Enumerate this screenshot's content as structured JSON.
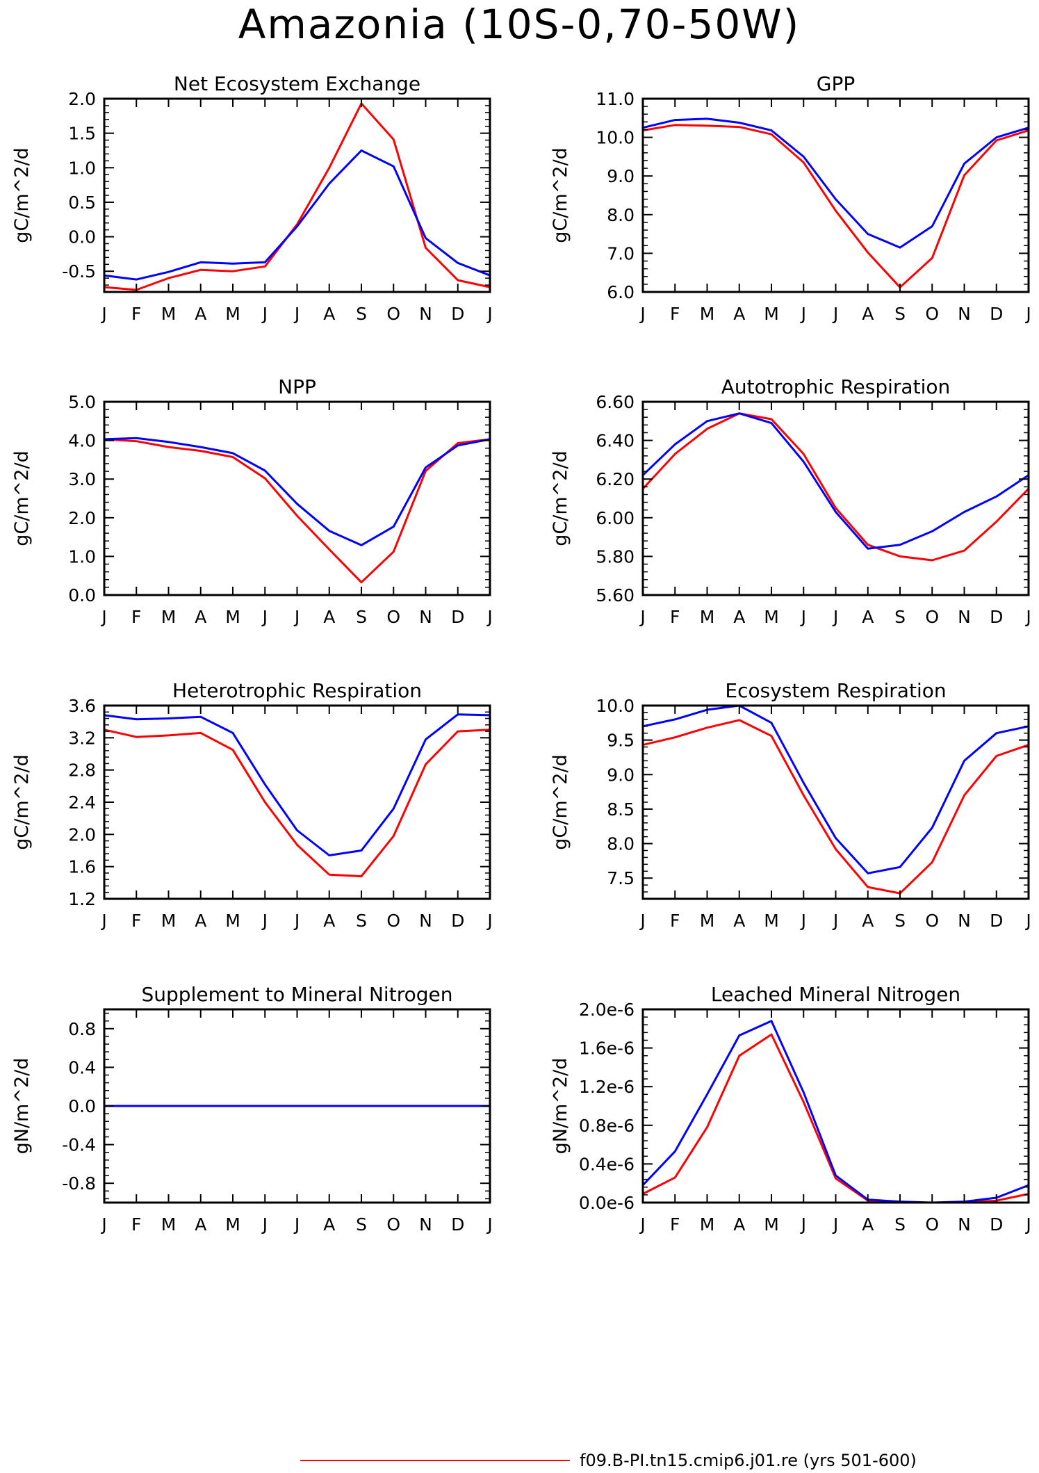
{
  "figure": {
    "title": "Amazonia (10S-0,70-50W)",
    "colors": {
      "series_red": "#ff0000",
      "series_blue": "#0000ff",
      "axis": "#000000"
    },
    "legend": [
      {
        "label": "f09.B-PI.tn15.cmip6.j01.re (yrs 501-600)",
        "color": "#ff0000"
      }
    ]
  },
  "chart_data": [
    {
      "type": "line",
      "title": "Net Ecosystem Exchange",
      "ylabel": "gC/m^2/d",
      "x": [
        "J",
        "F",
        "M",
        "A",
        "M",
        "J",
        "J",
        "A",
        "S",
        "O",
        "N",
        "D",
        "J"
      ],
      "ylim": [
        -0.8,
        2.0
      ],
      "yticks": [
        -0.5,
        0.0,
        0.5,
        1.0,
        1.5,
        2.0
      ],
      "ytick_labels": [
        "-0.5",
        "0.0",
        "0.5",
        "1.0",
        "1.5",
        "2.0"
      ],
      "series": [
        {
          "color": "#ff0000",
          "values": [
            -0.73,
            -0.77,
            -0.6,
            -0.48,
            -0.5,
            -0.43,
            0.18,
            1.0,
            1.93,
            1.41,
            -0.16,
            -0.63,
            -0.73
          ]
        },
        {
          "color": "#0000ff",
          "values": [
            -0.56,
            -0.62,
            -0.51,
            -0.37,
            -0.39,
            -0.37,
            0.15,
            0.77,
            1.25,
            1.02,
            -0.02,
            -0.38,
            -0.56
          ]
        }
      ]
    },
    {
      "type": "line",
      "title": "GPP",
      "ylabel": "gC/m^2/d",
      "x": [
        "J",
        "F",
        "M",
        "A",
        "M",
        "J",
        "J",
        "A",
        "S",
        "O",
        "N",
        "D",
        "J"
      ],
      "ylim": [
        6.0,
        11.0
      ],
      "yticks": [
        6.0,
        7.0,
        8.0,
        9.0,
        10.0,
        11.0
      ],
      "ytick_labels": [
        "6.0",
        "7.0",
        "8.0",
        "9.0",
        "10.0",
        "11.0"
      ],
      "series": [
        {
          "color": "#ff0000",
          "values": [
            10.18,
            10.32,
            10.3,
            10.27,
            10.08,
            9.35,
            8.1,
            7.02,
            6.12,
            6.88,
            9.02,
            9.92,
            10.18
          ]
        },
        {
          "color": "#0000ff",
          "values": [
            10.25,
            10.45,
            10.48,
            10.38,
            10.18,
            9.5,
            8.4,
            7.5,
            7.15,
            7.7,
            9.32,
            10.0,
            10.25
          ]
        }
      ]
    },
    {
      "type": "line",
      "title": "NPP",
      "ylabel": "gC/m^2/d",
      "x": [
        "J",
        "F",
        "M",
        "A",
        "M",
        "J",
        "J",
        "A",
        "S",
        "O",
        "N",
        "D",
        "J"
      ],
      "ylim": [
        0.0,
        5.0
      ],
      "yticks": [
        0.0,
        1.0,
        2.0,
        3.0,
        4.0,
        5.0
      ],
      "ytick_labels": [
        "0.0",
        "1.0",
        "2.0",
        "3.0",
        "4.0",
        "5.0"
      ],
      "series": [
        {
          "color": "#ff0000",
          "values": [
            4.03,
            3.98,
            3.83,
            3.73,
            3.57,
            3.02,
            2.05,
            1.18,
            0.33,
            1.12,
            3.21,
            3.93,
            4.03
          ]
        },
        {
          "color": "#0000ff",
          "values": [
            4.03,
            4.06,
            3.96,
            3.83,
            3.67,
            3.22,
            2.36,
            1.66,
            1.29,
            1.77,
            3.3,
            3.87,
            4.03
          ]
        }
      ]
    },
    {
      "type": "line",
      "title": "Autotrophic Respiration",
      "ylabel": "gC/m^2/d",
      "x": [
        "J",
        "F",
        "M",
        "A",
        "M",
        "J",
        "J",
        "A",
        "S",
        "O",
        "N",
        "D",
        "J"
      ],
      "ylim": [
        5.6,
        6.6
      ],
      "yticks": [
        5.6,
        5.8,
        6.0,
        6.2,
        6.4,
        6.6
      ],
      "ytick_labels": [
        "5.60",
        "5.80",
        "6.00",
        "6.20",
        "6.40",
        "6.60"
      ],
      "series": [
        {
          "color": "#ff0000",
          "values": [
            6.15,
            6.33,
            6.46,
            6.54,
            6.51,
            6.33,
            6.05,
            5.86,
            5.8,
            5.78,
            5.83,
            5.98,
            6.15
          ]
        },
        {
          "color": "#0000ff",
          "values": [
            6.22,
            6.38,
            6.5,
            6.54,
            6.49,
            6.29,
            6.03,
            5.84,
            5.86,
            5.93,
            6.03,
            6.11,
            6.22
          ]
        }
      ]
    },
    {
      "type": "line",
      "title": "Heterotrophic Respiration",
      "ylabel": "gC/m^2/d",
      "x": [
        "J",
        "F",
        "M",
        "A",
        "M",
        "J",
        "J",
        "A",
        "S",
        "O",
        "N",
        "D",
        "J"
      ],
      "ylim": [
        1.2,
        3.6
      ],
      "yticks": [
        1.2,
        1.6,
        2.0,
        2.4,
        2.8,
        3.2,
        3.6
      ],
      "ytick_labels": [
        "1.2",
        "1.6",
        "2.0",
        "2.4",
        "2.8",
        "3.2",
        "3.6"
      ],
      "series": [
        {
          "color": "#ff0000",
          "values": [
            3.3,
            3.21,
            3.23,
            3.26,
            3.05,
            2.4,
            1.87,
            1.5,
            1.48,
            1.98,
            2.87,
            3.28,
            3.3
          ]
        },
        {
          "color": "#0000ff",
          "values": [
            3.48,
            3.43,
            3.44,
            3.46,
            3.26,
            2.62,
            2.05,
            1.74,
            1.8,
            2.32,
            3.18,
            3.49,
            3.48
          ]
        }
      ]
    },
    {
      "type": "line",
      "title": "Ecosystem Respiration",
      "ylabel": "gC/m^2/d",
      "x": [
        "J",
        "F",
        "M",
        "A",
        "M",
        "J",
        "J",
        "A",
        "S",
        "O",
        "N",
        "D",
        "J"
      ],
      "ylim": [
        7.2,
        10.0
      ],
      "yticks": [
        7.5,
        8.0,
        8.5,
        9.0,
        9.5,
        10.0
      ],
      "ytick_labels": [
        "7.5",
        "8.0",
        "8.5",
        "9.0",
        "9.5",
        "10.0"
      ],
      "series": [
        {
          "color": "#ff0000",
          "values": [
            9.43,
            9.54,
            9.68,
            9.79,
            9.56,
            8.7,
            7.92,
            7.37,
            7.28,
            7.73,
            8.7,
            9.27,
            9.43
          ]
        },
        {
          "color": "#0000ff",
          "values": [
            9.7,
            9.8,
            9.94,
            10.0,
            9.75,
            8.88,
            8.08,
            7.57,
            7.66,
            8.23,
            9.2,
            9.6,
            9.7
          ]
        }
      ]
    },
    {
      "type": "line",
      "title": "Supplement to Mineral Nitrogen",
      "ylabel": "gN/m^2/d",
      "x": [
        "J",
        "F",
        "M",
        "A",
        "M",
        "J",
        "J",
        "A",
        "S",
        "O",
        "N",
        "D",
        "J"
      ],
      "ylim": [
        -1.0,
        1.0
      ],
      "yticks": [
        -0.8,
        -0.4,
        0.0,
        0.4,
        0.8
      ],
      "ytick_labels": [
        "-0.8",
        "-0.4",
        "0.0",
        "0.4",
        "0.8"
      ],
      "series": [
        {
          "color": "#ff0000",
          "values": [
            0,
            0,
            0,
            0,
            0,
            0,
            0,
            0,
            0,
            0,
            0,
            0,
            0
          ]
        },
        {
          "color": "#0000ff",
          "values": [
            0,
            0,
            0,
            0,
            0,
            0,
            0,
            0,
            0,
            0,
            0,
            0,
            0
          ]
        }
      ]
    },
    {
      "type": "line",
      "title": "Leached Mineral Nitrogen",
      "ylabel": "gN/m^2/d",
      "x": [
        "J",
        "F",
        "M",
        "A",
        "M",
        "J",
        "J",
        "A",
        "S",
        "O",
        "N",
        "D",
        "J"
      ],
      "ylim": [
        0.0,
        2e-06
      ],
      "yticks": [
        0.0,
        4e-07,
        8e-07,
        1.2e-06,
        1.6e-06,
        2e-06
      ],
      "ytick_labels": [
        "0.0e-6",
        "0.4e-6",
        "0.8e-6",
        "1.2e-6",
        "1.6e-6",
        "2.0e-6"
      ],
      "series": [
        {
          "color": "#ff0000",
          "values": [
            9e-08,
            2.6e-07,
            7.8e-07,
            1.52e-06,
            1.74e-06,
            1.04e-06,
            2.5e-07,
            2e-08,
            0.0,
            0.0,
            0.0,
            2e-08,
            9e-08
          ]
        },
        {
          "color": "#0000ff",
          "values": [
            1.8e-07,
            5.3e-07,
            1.12e-06,
            1.73e-06,
            1.88e-06,
            1.14e-06,
            2.8e-07,
            3e-08,
            1e-08,
            0.0,
            1e-08,
            5e-08,
            1.8e-07
          ]
        }
      ]
    }
  ]
}
